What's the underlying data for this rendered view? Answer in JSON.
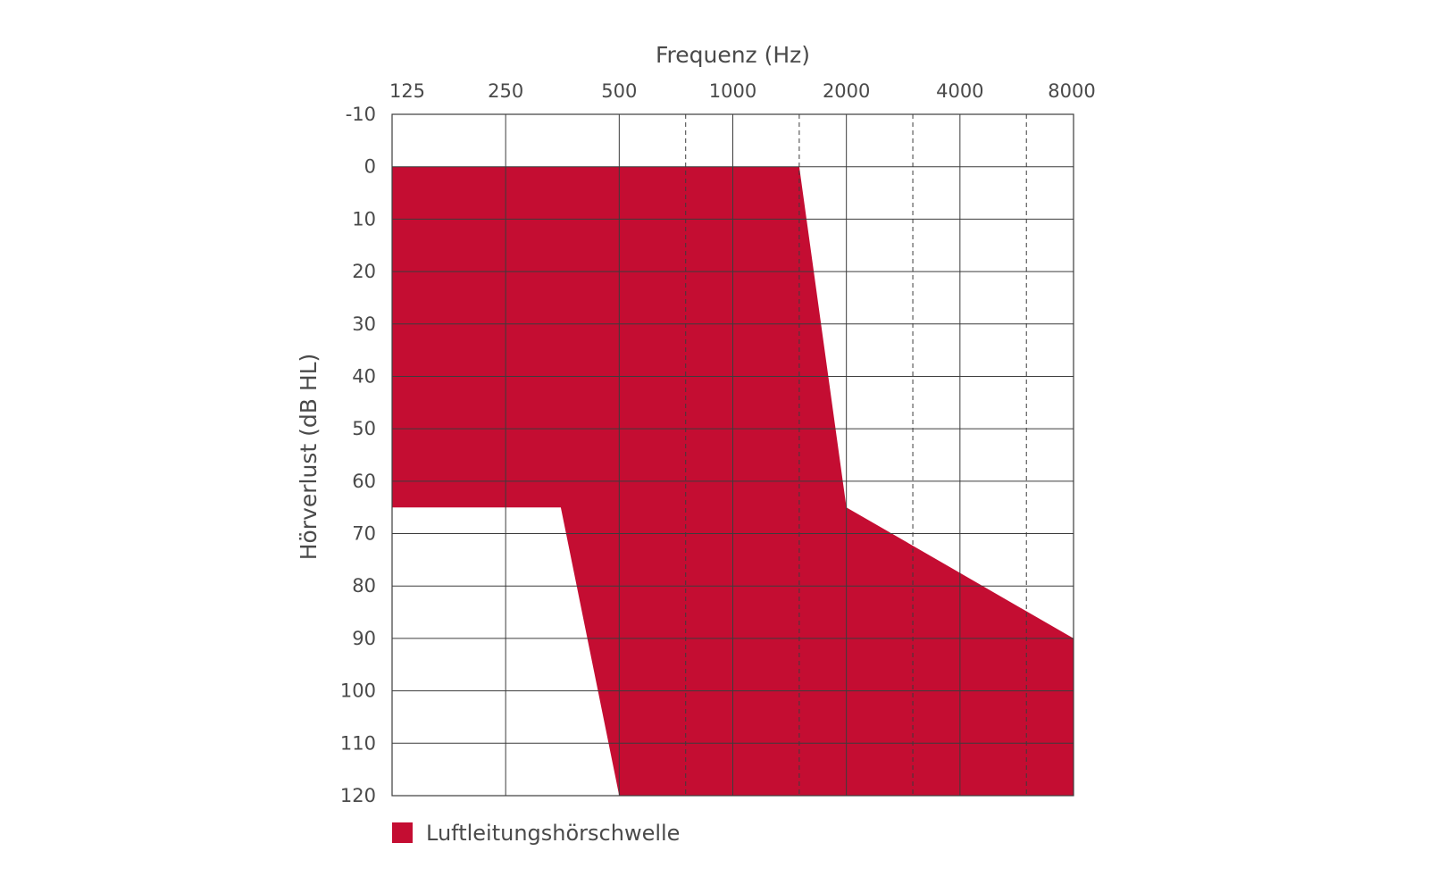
{
  "chart_data": {
    "type": "area",
    "title": "",
    "xlabel": "Frequenz (Hz)",
    "ylabel": "Hörverlust (dB HL)",
    "x_scale": "log2",
    "x_ticks": [
      125,
      250,
      500,
      1000,
      2000,
      4000,
      8000
    ],
    "x_tick_labels": [
      "125",
      "250",
      "500",
      "1000",
      "2000",
      "4000",
      "8000"
    ],
    "x_minor_ticks": [
      750,
      1500,
      3000,
      6000
    ],
    "xlim": [
      125,
      8000
    ],
    "y_ticks": [
      -10,
      0,
      10,
      20,
      30,
      40,
      50,
      60,
      70,
      80,
      90,
      100,
      110,
      120
    ],
    "y_tick_labels": [
      "-10",
      "0",
      "10",
      "20",
      "30",
      "40",
      "50",
      "60",
      "70",
      "80",
      "90",
      "100",
      "110",
      "120"
    ],
    "ylim": [
      -10,
      120
    ],
    "y_inverted": true,
    "grid": true,
    "legend": "bottom-left",
    "series": [
      {
        "name": "Luftleitungshörschwelle",
        "color": "#c40d32",
        "polygon": [
          {
            "x": 125,
            "y": 0
          },
          {
            "x": 1500,
            "y": 0
          },
          {
            "x": 2000,
            "y": 65
          },
          {
            "x": 8000,
            "y": 90
          },
          {
            "x": 8000,
            "y": 120
          },
          {
            "x": 500,
            "y": 120
          },
          {
            "x": 350,
            "y": 65
          },
          {
            "x": 125,
            "y": 65
          }
        ]
      }
    ]
  }
}
